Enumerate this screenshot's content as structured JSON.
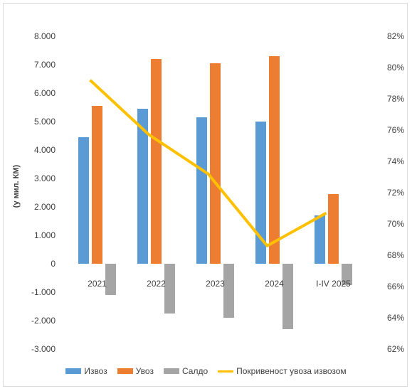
{
  "chart_data": {
    "type": "bar",
    "categories": [
      "2021",
      "2022",
      "2023",
      "2024",
      "I-IV 2025"
    ],
    "series": [
      {
        "name": "Извоз",
        "type": "bar",
        "axis": "left",
        "values": [
          4450,
          5450,
          5150,
          5000,
          1700
        ]
      },
      {
        "name": "Увоз",
        "type": "bar",
        "axis": "left",
        "values": [
          5550,
          7200,
          7050,
          7300,
          2450
        ]
      },
      {
        "name": "Салдо",
        "type": "bar",
        "axis": "left",
        "values": [
          -1100,
          -1750,
          -1900,
          -2300,
          -750
        ]
      },
      {
        "name": "Покривеност увоза извозом",
        "type": "line",
        "axis": "right",
        "values": [
          0.792,
          0.757,
          0.732,
          0.686,
          0.707
        ]
      }
    ],
    "ylabel": "(у мил. КМ)",
    "ylim": [
      -3000,
      8000
    ],
    "y_ticks": [
      "8.000",
      "7.000",
      "6.000",
      "5.000",
      "4.000",
      "3.000",
      "2.000",
      "1.000",
      "0",
      "-1.000",
      "-2.000",
      "-3.000"
    ],
    "y2lim": [
      0.62,
      0.82
    ],
    "y2_ticks": [
      "82%",
      "80%",
      "78%",
      "76%",
      "74%",
      "72%",
      "70%",
      "68%",
      "66%",
      "64%",
      "62%"
    ],
    "grid": false,
    "legend_position": "bottom",
    "colors": {
      "Извоз": "#5b9bd5",
      "Увоз": "#ed7d31",
      "Салдо": "#a5a5a5",
      "Покривеност увоза извозом": "#ffc000"
    }
  }
}
